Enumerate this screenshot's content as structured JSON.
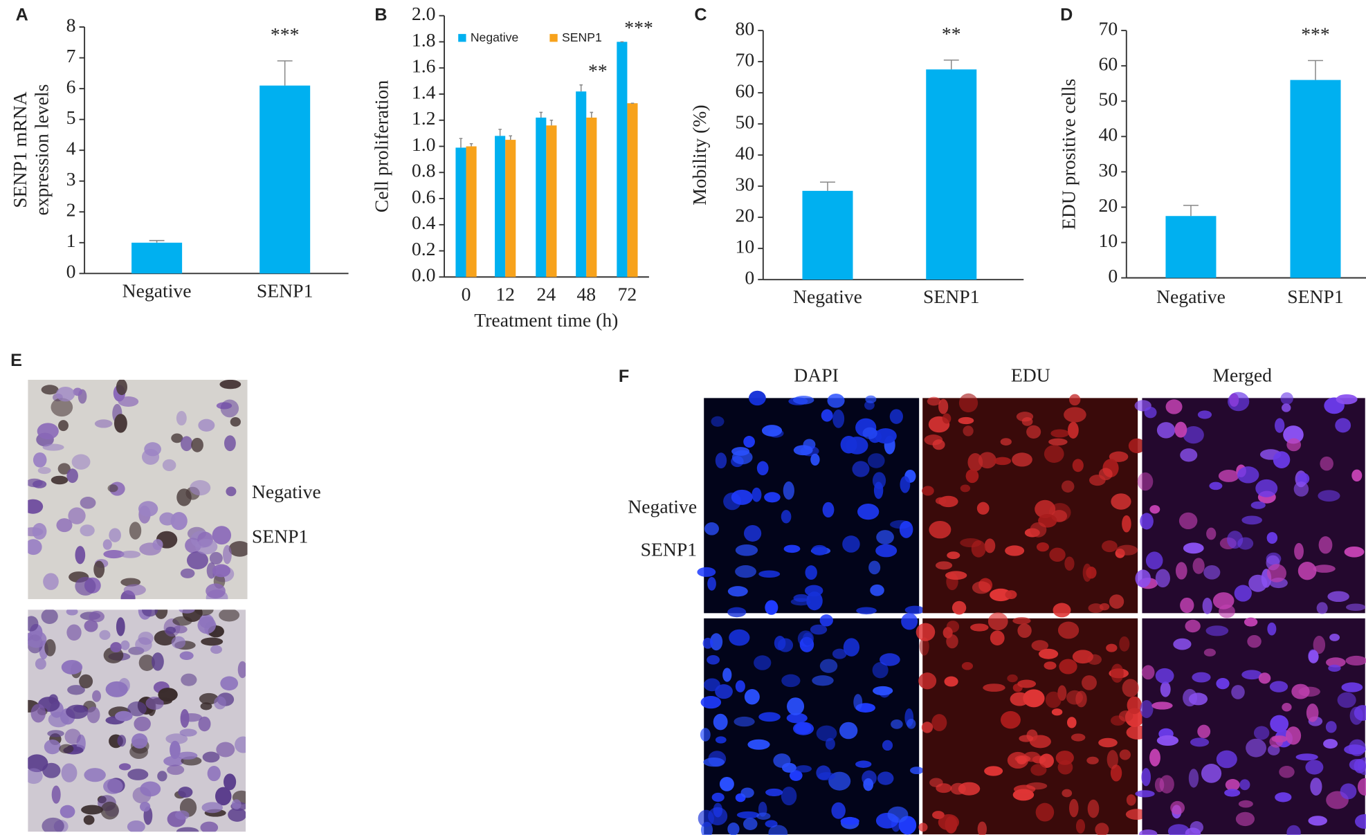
{
  "chart_data": [
    {
      "type": "bar",
      "panel": "A",
      "ylabel": [
        "SENP1 mRNA",
        "expression levels"
      ],
      "categories": [
        "Negative",
        "SENP1"
      ],
      "values": [
        1.0,
        6.1
      ],
      "errors": [
        0.07,
        0.8
      ],
      "significance": [
        null,
        "***"
      ],
      "color": "#00b0f0",
      "ylim": [
        0,
        8
      ],
      "yticks": [
        0,
        1,
        2,
        3,
        4,
        5,
        6,
        7,
        8
      ]
    },
    {
      "type": "grouped-bar",
      "panel": "B",
      "ylabel": "Cell proliferation",
      "xlabel": "Treatment time (h)",
      "categories": [
        "0",
        "12",
        "24",
        "48",
        "72"
      ],
      "series": [
        {
          "name": "Negative",
          "color": "#00b0f0",
          "values": [
            0.99,
            1.08,
            1.22,
            1.42,
            1.8
          ],
          "errors": [
            0.07,
            0.05,
            0.04,
            0.05,
            0
          ]
        },
        {
          "name": "SENP1",
          "color": "#f7a21b",
          "values": [
            1.0,
            1.05,
            1.16,
            1.22,
            1.33
          ],
          "errors": [
            0.02,
            0.03,
            0.04,
            0.04,
            0
          ]
        }
      ],
      "significance": [
        null,
        null,
        null,
        "**",
        "***"
      ],
      "ylim": [
        0,
        2
      ],
      "yticks": [
        {
          "value": 0,
          "label": "0.0"
        },
        {
          "value": 0.2,
          "label": "0.2"
        },
        {
          "value": 0.4,
          "label": "0.4"
        },
        {
          "value": 0.6,
          "label": "0.6"
        },
        {
          "value": 0.8,
          "label": "0.8"
        },
        {
          "value": 1,
          "label": "1.0"
        },
        {
          "value": 1.2,
          "label": "1.2"
        },
        {
          "value": 1.4,
          "label": "1.4"
        },
        {
          "value": 1.6,
          "label": "1.6"
        },
        {
          "value": 1.8,
          "label": "1.8"
        },
        {
          "value": 2,
          "label": "2.0"
        }
      ]
    },
    {
      "type": "bar",
      "panel": "C",
      "ylabel": "Mobility (%)",
      "categories": [
        "Negative",
        "SENP1"
      ],
      "values": [
        28.5,
        67.5
      ],
      "errors": [
        2.8,
        3.0
      ],
      "significance": [
        null,
        "**"
      ],
      "color": "#00b0f0",
      "ylim": [
        0,
        80
      ],
      "yticks": [
        0,
        10,
        20,
        30,
        40,
        50,
        60,
        70,
        80
      ]
    },
    {
      "type": "bar",
      "panel": "D",
      "ylabel": "EDU prositive cells",
      "categories": [
        "Negative",
        "SENP1"
      ],
      "values": [
        17.5,
        56
      ],
      "errors": [
        3.0,
        5.5
      ],
      "significance": [
        null,
        "***"
      ],
      "color": "#00b0f0",
      "ylim": [
        0,
        70
      ],
      "yticks": [
        0,
        10,
        20,
        30,
        40,
        50,
        60,
        70
      ]
    }
  ],
  "images": {
    "E": {
      "panel": "E",
      "row_labels": [
        "Negative",
        "SENP1"
      ]
    },
    "F": {
      "panel": "F",
      "column_titles": [
        "DAPI",
        "EDU",
        "Merged"
      ],
      "row_labels": [
        "Negative",
        "SENP1"
      ]
    }
  }
}
